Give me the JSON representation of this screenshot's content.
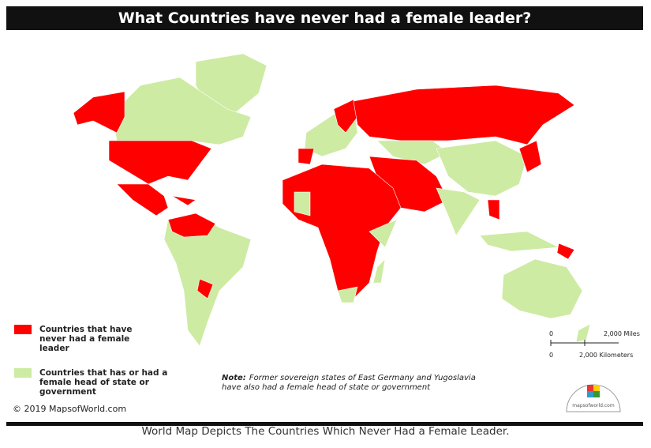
{
  "header": {
    "title": "What Countries have never had a female leader?"
  },
  "legend": {
    "items": [
      {
        "label": "Countries that have never had a female leader",
        "color": "#ff0000"
      },
      {
        "label": "Countries that has or had a female head of state or government",
        "color": "#cdeba3"
      }
    ]
  },
  "note": {
    "label": "Note:",
    "text": "Former sovereign states of East Germany and Yugoslavia have also had a female head of state or government"
  },
  "scale": {
    "miles_zero": "0",
    "miles": "2,000 Miles",
    "km_zero": "0",
    "kilometers": "2,000 Kilometers"
  },
  "logo": "mapsofworld.com",
  "copyright": "© 2019 MapsofWorld.com",
  "caption": "World Map Depicts The Countries Which Never Had a Female Leader."
}
